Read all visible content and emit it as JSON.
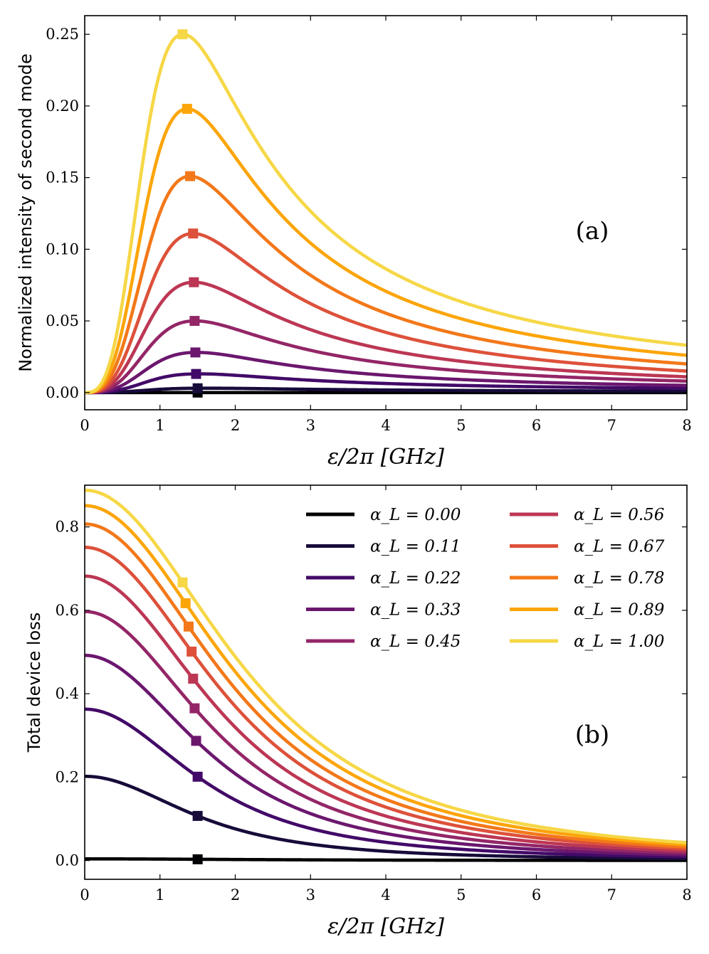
{
  "chart_data": [
    {
      "type": "line",
      "panel_label": "(a)",
      "xlabel": "ε/2π [GHz]",
      "ylabel": "Normalized intensity of second mode",
      "xlim": [
        0,
        8
      ],
      "ylim": [
        -0.012,
        0.263
      ],
      "xticks": [
        0,
        1,
        2,
        3,
        4,
        5,
        6,
        7,
        8
      ],
      "xtick_labels": [
        "0",
        "1",
        "2",
        "3",
        "4",
        "5",
        "6",
        "7",
        "8"
      ],
      "yticks": [
        0.0,
        0.05,
        0.1,
        0.15,
        0.2,
        0.25
      ],
      "ytick_labels": [
        "0.00",
        "0.05",
        "0.10",
        "0.15",
        "0.20",
        "0.25"
      ],
      "curve_model": "y = A * (x/x_peak)^3 / (1 + 2*(x/x_peak)^3)^1.5 normalized so y(x_peak) = peak",
      "series": [
        {
          "name": "α_L = 0.00",
          "peak_x": 1.5,
          "peak_y": 0.0,
          "end_y": 0.0
        },
        {
          "name": "α_L = 0.11",
          "peak_x": 1.5,
          "peak_y": 0.003,
          "end_y": 0.001
        },
        {
          "name": "α_L = 0.22",
          "peak_x": 1.48,
          "peak_y": 0.013,
          "end_y": 0.003
        },
        {
          "name": "α_L = 0.33",
          "peak_x": 1.47,
          "peak_y": 0.028,
          "end_y": 0.005
        },
        {
          "name": "α_L = 0.45",
          "peak_x": 1.46,
          "peak_y": 0.05,
          "end_y": 0.008
        },
        {
          "name": "α_L = 0.56",
          "peak_x": 1.45,
          "peak_y": 0.077,
          "end_y": 0.011
        },
        {
          "name": "α_L = 0.67",
          "peak_x": 1.44,
          "peak_y": 0.111,
          "end_y": 0.015
        },
        {
          "name": "α_L = 0.78",
          "peak_x": 1.4,
          "peak_y": 0.151,
          "end_y": 0.02
        },
        {
          "name": "α_L = 0.89",
          "peak_x": 1.36,
          "peak_y": 0.198,
          "end_y": 0.026
        },
        {
          "name": "α_L = 1.00",
          "peak_x": 1.3,
          "peak_y": 0.25,
          "end_y": 0.033
        }
      ]
    },
    {
      "type": "line",
      "panel_label": "(b)",
      "xlabel": "ε/2π [GHz]",
      "ylabel": "Total device loss",
      "xlim": [
        0,
        8
      ],
      "ylim": [
        -0.045,
        0.9
      ],
      "xticks": [
        0,
        1,
        2,
        3,
        4,
        5,
        6,
        7,
        8
      ],
      "xtick_labels": [
        "0",
        "1",
        "2",
        "3",
        "4",
        "5",
        "6",
        "7",
        "8"
      ],
      "yticks": [
        0.0,
        0.2,
        0.4,
        0.6,
        0.8
      ],
      "ytick_labels": [
        "0.0",
        "0.2",
        "0.4",
        "0.6",
        "0.8"
      ],
      "curve_model": "y = y0 / (1 + (x/x0)^2)^1.3",
      "series": [
        {
          "name": "α_L = 0.00",
          "y0": 0.004,
          "marker_x": 1.5,
          "marker_y": 0.003
        },
        {
          "name": "α_L = 0.11",
          "y0": 0.202,
          "marker_x": 1.5,
          "marker_y": 0.107
        },
        {
          "name": "α_L = 0.22",
          "y0": 0.363,
          "marker_x": 1.5,
          "marker_y": 0.201
        },
        {
          "name": "α_L = 0.33",
          "y0": 0.492,
          "marker_x": 1.48,
          "marker_y": 0.287
        },
        {
          "name": "α_L = 0.45",
          "y0": 0.597,
          "marker_x": 1.46,
          "marker_y": 0.365
        },
        {
          "name": "α_L = 0.56",
          "y0": 0.682,
          "marker_x": 1.44,
          "marker_y": 0.436
        },
        {
          "name": "α_L = 0.67",
          "y0": 0.751,
          "marker_x": 1.42,
          "marker_y": 0.501
        },
        {
          "name": "α_L = 0.78",
          "y0": 0.807,
          "marker_x": 1.38,
          "marker_y": 0.561
        },
        {
          "name": "α_L = 0.89",
          "y0": 0.851,
          "marker_x": 1.34,
          "marker_y": 0.617
        },
        {
          "name": "α_L = 1.00",
          "y0": 0.888,
          "marker_x": 1.3,
          "marker_y": 0.667
        }
      ],
      "legend": {
        "location": "top-right",
        "columns": 2,
        "entries": [
          "α_L = 0.00",
          "α_L = 0.11",
          "α_L = 0.22",
          "α_L = 0.33",
          "α_L = 0.45",
          "α_L = 0.56",
          "α_L = 0.67",
          "α_L = 0.78",
          "α_L = 0.89",
          "α_L = 1.00"
        ]
      }
    }
  ],
  "colors": [
    "#000004",
    "#1b0c41",
    "#4a0c6b",
    "#781c6d",
    "#a52c60",
    "#cf4446",
    "#ed6925",
    "#fb9b06",
    "#f7d13d",
    "#f5e14a"
  ],
  "series_colors": [
    "#000004",
    "#170b3a",
    "#420a68",
    "#6b176e",
    "#932667",
    "#bc3754",
    "#dd513a",
    "#f37819",
    "#fca50a",
    "#f6d746"
  ]
}
